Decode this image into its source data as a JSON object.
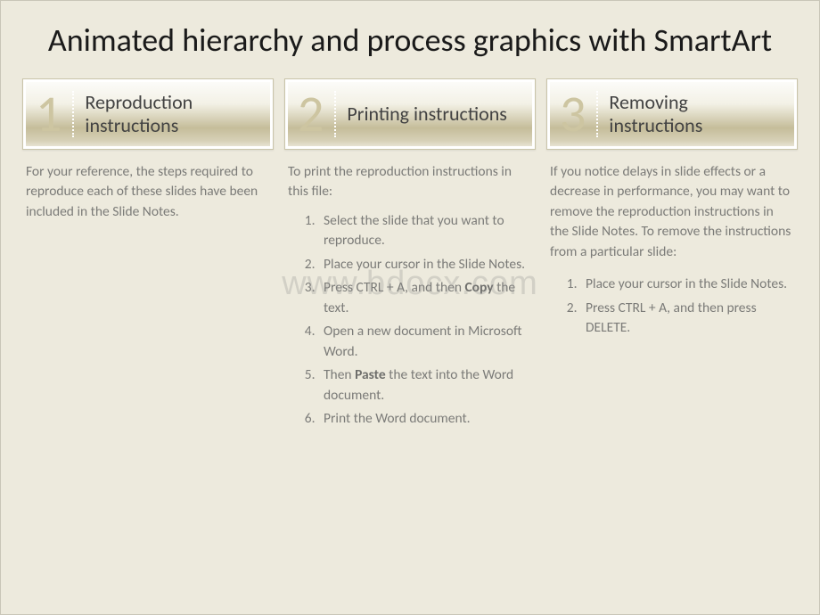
{
  "title": "Animated hierarchy and process graphics with SmartArt",
  "watermark": "www.bdocx.com",
  "colors": {
    "page_bg": "#edeadd",
    "card_border": "#c9c4a9",
    "card_grad_top": "#fdfdfb",
    "card_grad_mid": "#c5bd9a",
    "card_grad_bot": "#efece0",
    "number": "#cdc5a1",
    "title_text": "#1a1a1a",
    "card_title": "#424242",
    "body_text": "#7b7b78",
    "dotted_line": "#ffffff"
  },
  "columns": [
    {
      "num": "1",
      "title": "Reproduction instructions",
      "intro": "For your reference, the steps required to reproduce each of these slides have been included in the Slide Notes.",
      "steps": [],
      "intro2": "",
      "steps2": []
    },
    {
      "num": "2",
      "title": "Printing instructions",
      "intro": "To print the reproduction instructions in this file:",
      "steps": [
        "Select the slide that you want to reproduce.",
        "Place your cursor in the Slide Notes.",
        "Press CTRL + A, and then **Copy** the text.",
        "Open a new document in Microsoft Word.",
        "Then **Paste** the text into the Word document.",
        "Print the Word document."
      ],
      "intro2": "",
      "steps2": []
    },
    {
      "num": "3",
      "title": "Removing instructions",
      "intro": "If you notice delays in slide effects or a decrease in performance, you may want to remove the reproduction instructions in the Slide Notes. To remove the instructions from a particular slide:",
      "steps": [],
      "intro2": "",
      "steps2": [
        "Place your cursor in the Slide Notes.",
        "Press CTRL + A, and then press DELETE."
      ]
    }
  ]
}
